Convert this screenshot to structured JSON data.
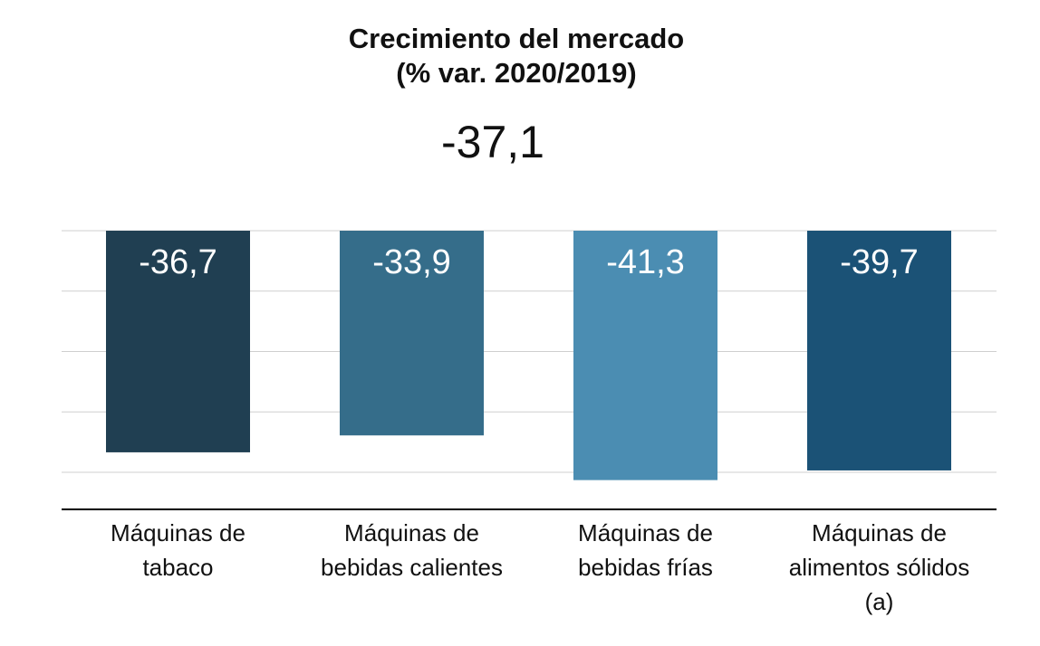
{
  "chart_data": {
    "type": "bar",
    "title": "Crecimiento del mercado",
    "subtitle": "(% var. 2020/2019)",
    "total_label": "-37,1",
    "categories": [
      "Máquinas de\ntabaco",
      "Máquinas de\nbebidas calientes",
      "Máquinas de\nbebidas frías",
      "Máquinas de\nalimentos sólidos\n(a)"
    ],
    "values": [
      -36.7,
      -33.9,
      -41.3,
      -39.7
    ],
    "data_labels": [
      "-36,7",
      "-33,9",
      "-41,3",
      "-39,7"
    ],
    "colors": [
      "#203f52",
      "#356d8a",
      "#4b8db2",
      "#1b5276"
    ],
    "ylim": [
      -46,
      0
    ],
    "gridlines": [
      0,
      -10,
      -20,
      -30,
      -40
    ],
    "grid": true,
    "xlabel": "",
    "ylabel": ""
  }
}
